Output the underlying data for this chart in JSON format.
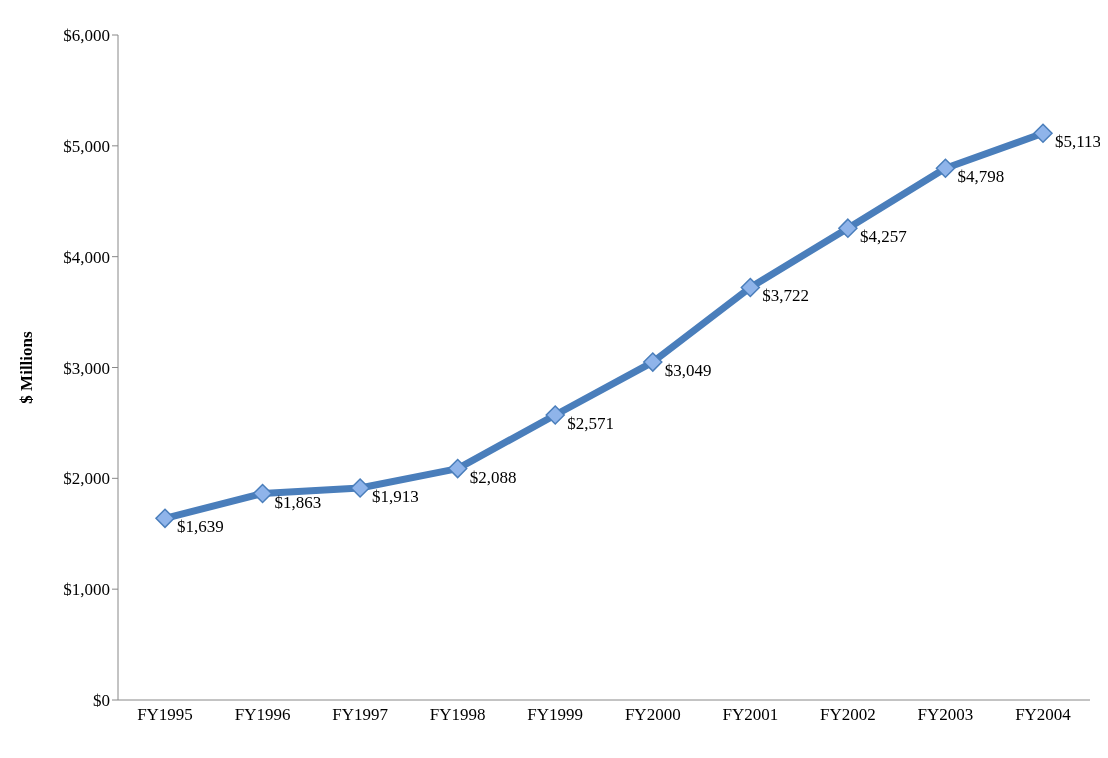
{
  "chart_data": {
    "type": "line",
    "ylabel": "$ Millions",
    "categories": [
      "FY1995",
      "FY1996",
      "FY1997",
      "FY1998",
      "FY1999",
      "FY2000",
      "FY2001",
      "FY2002",
      "FY2003",
      "FY2004"
    ],
    "series": [
      {
        "color": "#4a7ebb",
        "values": [
          1639,
          1863,
          1913,
          2088,
          2571,
          3049,
          3722,
          4257,
          4798,
          5113
        ],
        "value_labels": [
          "$1,639",
          "$1,863",
          "$1,913",
          "$2,088",
          "$2,571",
          "$3,049",
          "$3,722",
          "$4,257",
          "$4,798",
          "$5,113"
        ]
      }
    ],
    "ylim": [
      0,
      6000
    ],
    "yticks": [
      {
        "value": 0,
        "label": "$0"
      },
      {
        "value": 1000,
        "label": "$1,000"
      },
      {
        "value": 2000,
        "label": "$2,000"
      },
      {
        "value": 3000,
        "label": "$3,000"
      },
      {
        "value": 4000,
        "label": "$4,000"
      },
      {
        "value": 5000,
        "label": "$5,000"
      },
      {
        "value": 6000,
        "label": "$6,000"
      }
    ],
    "grid": false,
    "legend": false,
    "marker": "diamond",
    "line_style": "solid"
  }
}
